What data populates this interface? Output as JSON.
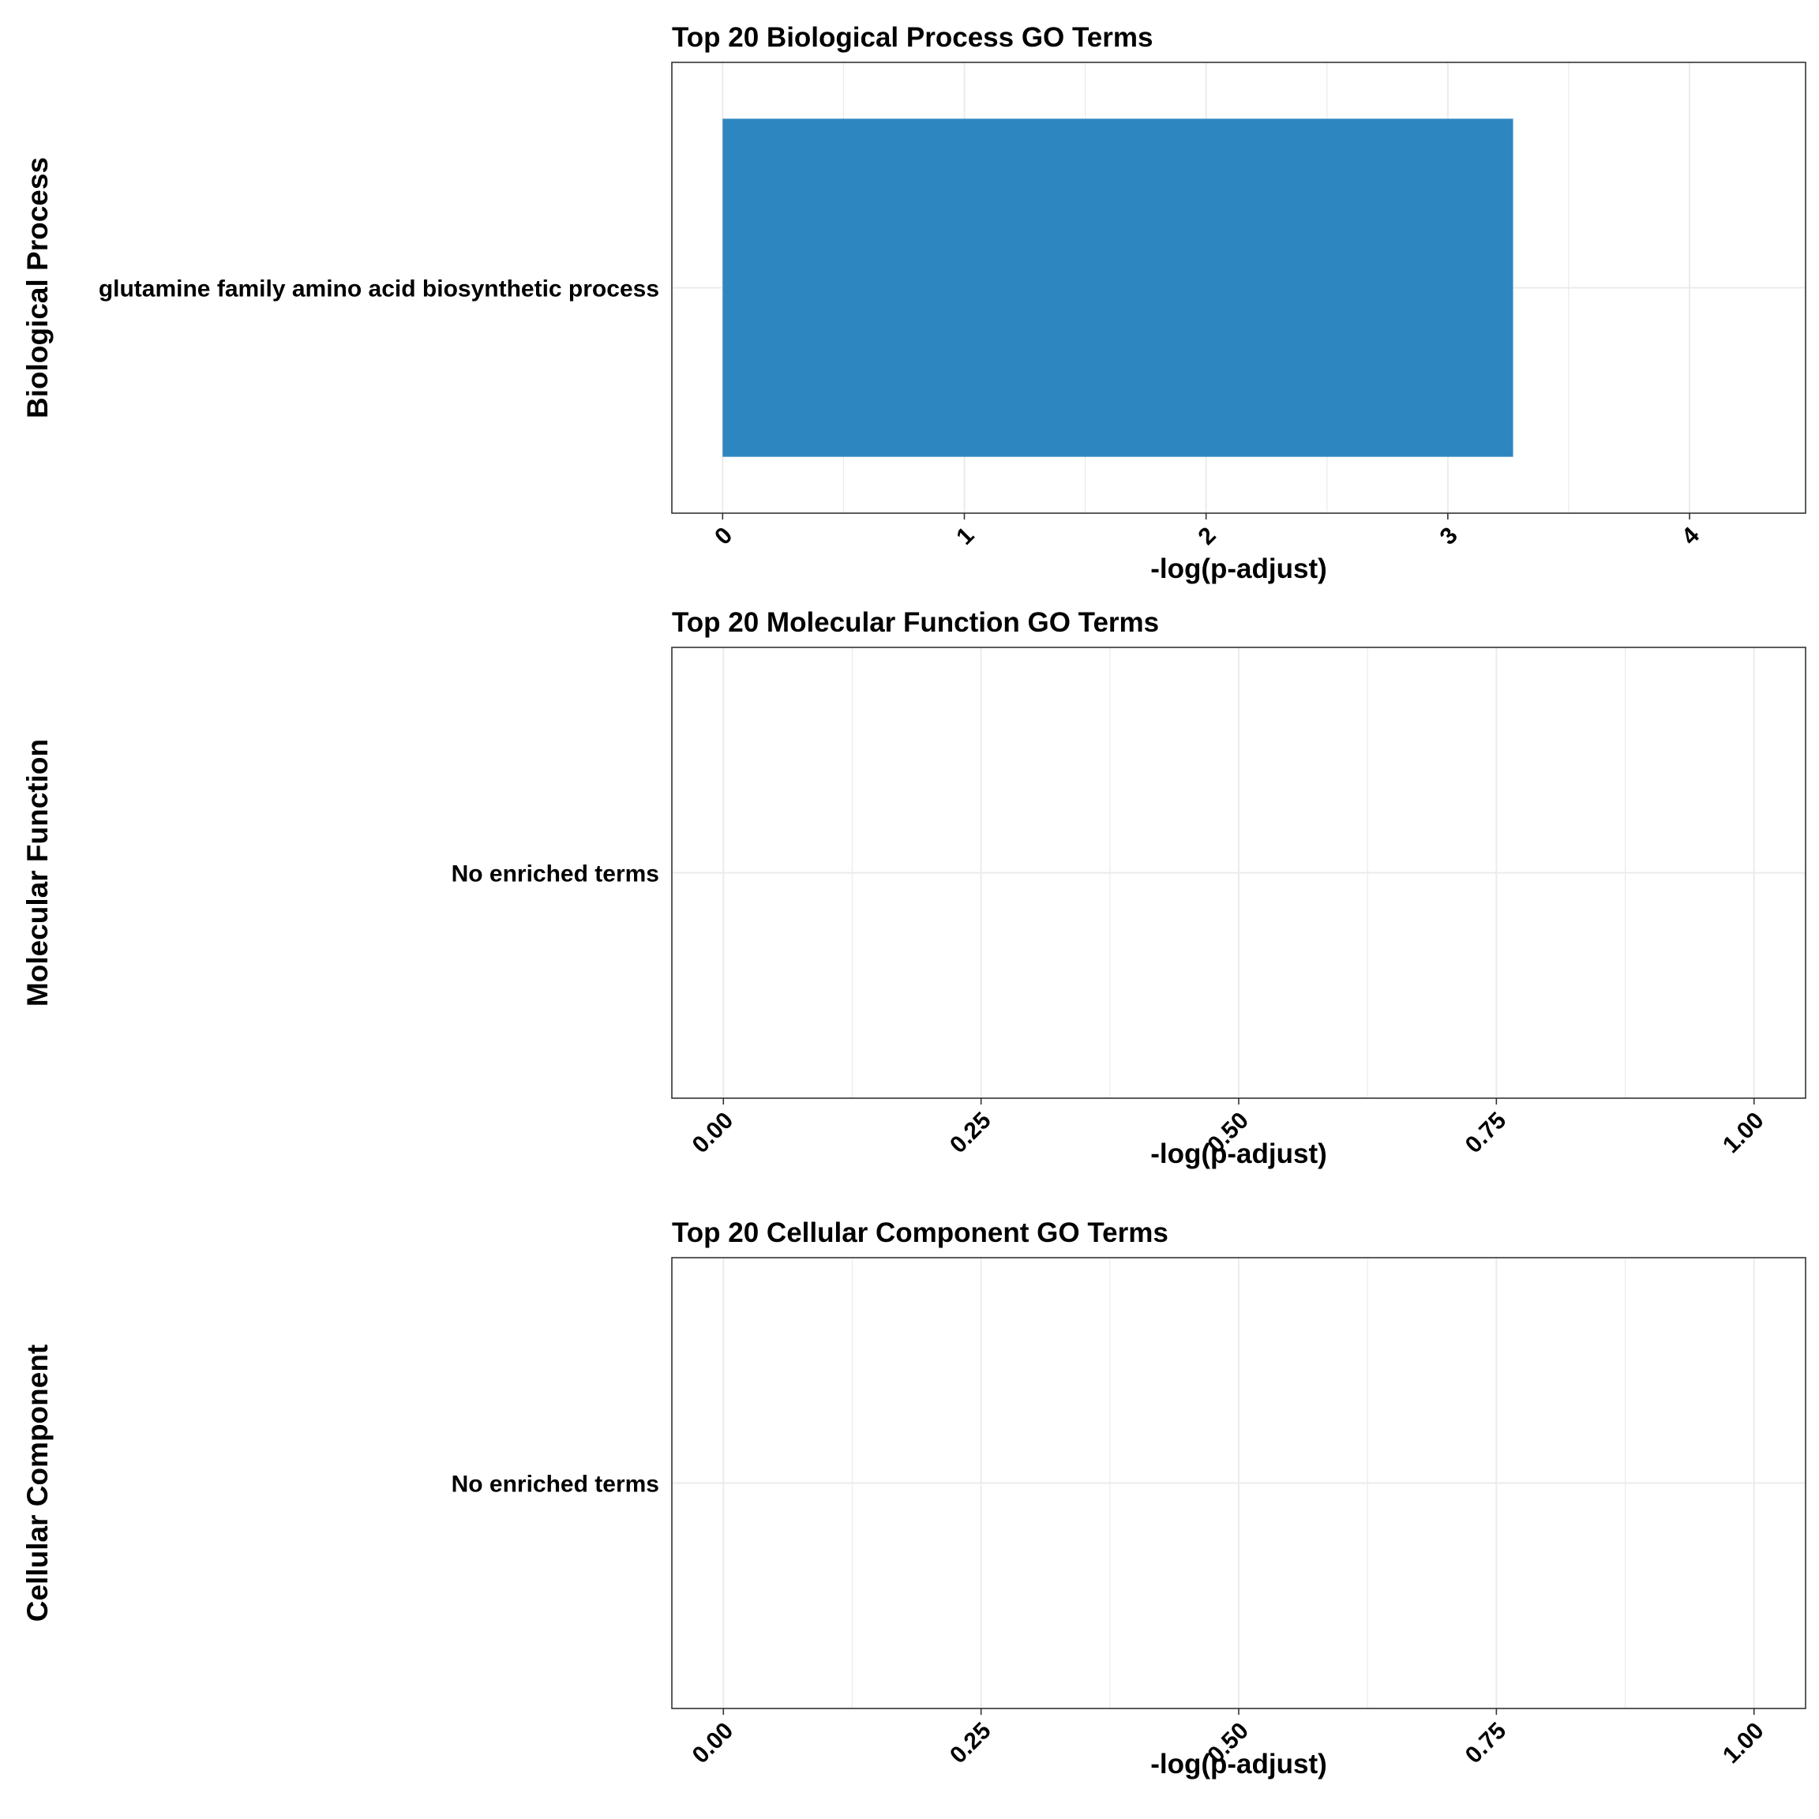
{
  "colors": {
    "bar": "#2E86C1",
    "grid": "#EBEBEB",
    "border": "#333333",
    "text": "#000000"
  },
  "chart_data": [
    {
      "type": "bar",
      "orientation": "horizontal",
      "title": "Top 20 Biological Process GO Terms",
      "xlabel": "-log(p-adjust)",
      "ylabel": "Biological Process",
      "categories": [
        "glutamine family amino acid biosynthetic process"
      ],
      "values": [
        3.27
      ],
      "xlim": [
        -0.21,
        4.48
      ],
      "xticks": [
        0,
        1,
        2,
        3,
        4
      ],
      "xtick_labels": [
        "0",
        "1",
        "2",
        "3",
        "4"
      ],
      "grid": true,
      "legend": "none"
    },
    {
      "type": "bar",
      "orientation": "horizontal",
      "title": "Top 20 Molecular Function GO Terms",
      "xlabel": "-log(p-adjust)",
      "ylabel": "Molecular Function",
      "categories": [
        "No enriched terms"
      ],
      "values": [
        0
      ],
      "xlim": [
        -0.05,
        1.05
      ],
      "xticks": [
        0,
        0.25,
        0.5,
        0.75,
        1
      ],
      "xtick_labels": [
        "0.00",
        "0.25",
        "0.50",
        "0.75",
        "1.00"
      ],
      "grid": true,
      "legend": "none"
    },
    {
      "type": "bar",
      "orientation": "horizontal",
      "title": "Top 20 Cellular Component GO Terms",
      "xlabel": "-log(p-adjust)",
      "ylabel": "Cellular Component",
      "categories": [
        "No enriched terms"
      ],
      "values": [
        0
      ],
      "xlim": [
        -0.05,
        1.05
      ],
      "xticks": [
        0,
        0.25,
        0.5,
        0.75,
        1
      ],
      "xtick_labels": [
        "0.00",
        "0.25",
        "0.50",
        "0.75",
        "1.00"
      ],
      "grid": true,
      "legend": "none"
    }
  ]
}
